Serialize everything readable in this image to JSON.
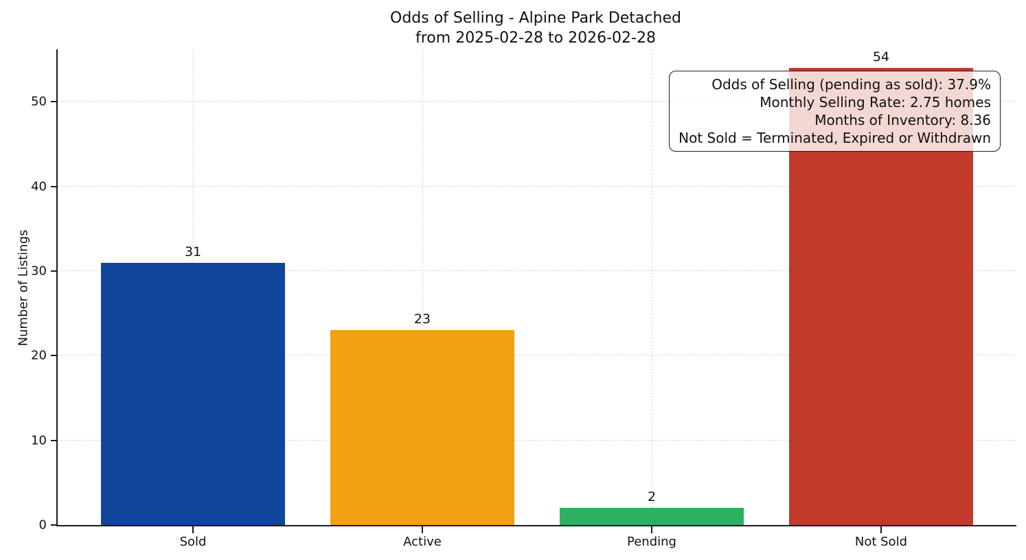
{
  "chart_data": {
    "type": "bar",
    "title": "Odds of Selling - Alpine Park Detached",
    "subtitle": "from 2025-02-28 to 2026-02-28",
    "ylabel": "Number of Listings",
    "xlabel": "",
    "categories": [
      "Sold",
      "Active",
      "Pending",
      "Not Sold"
    ],
    "values": [
      31,
      23,
      2,
      54
    ],
    "bar_colors": [
      "#11459C",
      "#F2A113",
      "#2FAF60",
      "#C23A2B"
    ],
    "yticks": [
      0,
      10,
      20,
      30,
      40,
      50
    ],
    "ylim": [
      0,
      56.2
    ],
    "grid": "dashed, both axes, light gray",
    "legend_position": "none",
    "annotation_lines": [
      "Odds of Selling (pending as sold): 37.9%",
      "Monthly Selling Rate: 2.75 homes",
      "Months of Inventory: 8.36",
      "Not Sold = Terminated, Expired or Withdrawn"
    ]
  },
  "colors": {
    "background": "#ffffff",
    "spine": "#1a1a1a",
    "gridline": "#d9d9d9",
    "text": "#111111",
    "annotation_background": "rgba(255,255,255,0.8)"
  }
}
